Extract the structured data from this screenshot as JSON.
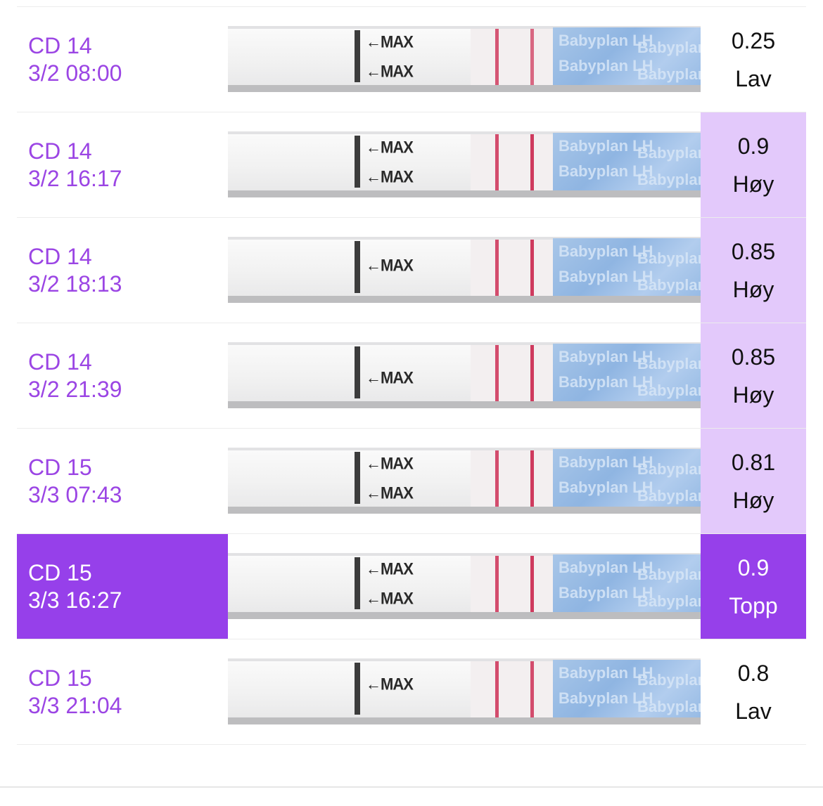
{
  "entries": [
    {
      "cycle_day": "CD 14",
      "datetime": "3/2 08:00",
      "value": "0.25",
      "level": "Lav",
      "level_kind": "low",
      "selected": false
    },
    {
      "cycle_day": "CD 14",
      "datetime": "3/2 16:17",
      "value": "0.9",
      "level": "Høy",
      "level_kind": "high",
      "selected": false
    },
    {
      "cycle_day": "CD 14",
      "datetime": "3/2 18:13",
      "value": "0.85",
      "level": "Høy",
      "level_kind": "high",
      "selected": false
    },
    {
      "cycle_day": "CD 14",
      "datetime": "3/2 21:39",
      "value": "0.85",
      "level": "Høy",
      "level_kind": "high",
      "selected": false
    },
    {
      "cycle_day": "CD 15",
      "datetime": "3/3 07:43",
      "value": "0.81",
      "level": "Høy",
      "level_kind": "high",
      "selected": false
    },
    {
      "cycle_day": "CD 15",
      "datetime": "3/3 16:27",
      "value": "0.9",
      "level": "Topp",
      "level_kind": "peak",
      "selected": true
    },
    {
      "cycle_day": "CD 15",
      "datetime": "3/3 21:04",
      "value": "0.8",
      "level": "Lav",
      "level_kind": "low",
      "selected": false
    }
  ],
  "strip": {
    "marker_text": "←MAX",
    "brand_text": "Babyplan LH"
  },
  "colors": {
    "accent_purple": "#9640ea",
    "date_text_purple": "#9b45e4",
    "high_background": "#e3c9fb",
    "test_line_red": "#cf3a5e",
    "wrapper_blue": "#a8c6e8"
  },
  "icons": {
    "arrow": "left-arrow"
  }
}
